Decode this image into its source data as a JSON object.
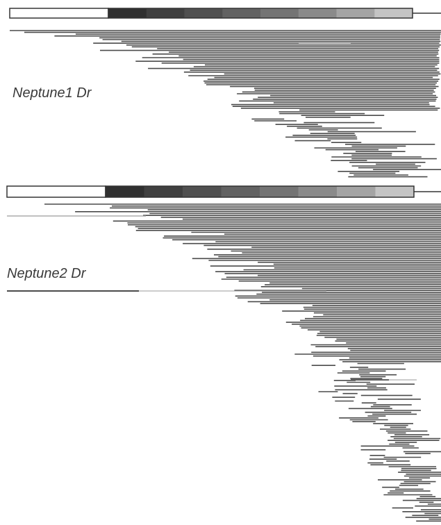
{
  "labels": {
    "panel1": "Neptune1 Dr",
    "panel2": "Neptune2 Dr"
  },
  "colors": {
    "read": "#4a4a4a",
    "read_light": "#9a9a9a",
    "outline": "#333333",
    "background": "#ffffff",
    "gradient": [
      "#303030",
      "#404040",
      "#505050",
      "#626262",
      "#747474",
      "#8a8a8a",
      "#a4a4a4",
      "#c4c4c4"
    ]
  },
  "panels": [
    {
      "id": "neptune1",
      "gene_model": {
        "utr5_start": 0,
        "cds_start": 0.25,
        "cds_end": 1.0
      }
    },
    {
      "id": "neptune2",
      "gene_model": {
        "utr5_start": 0,
        "cds_start": 0.24,
        "cds_end": 1.0
      }
    }
  ]
}
